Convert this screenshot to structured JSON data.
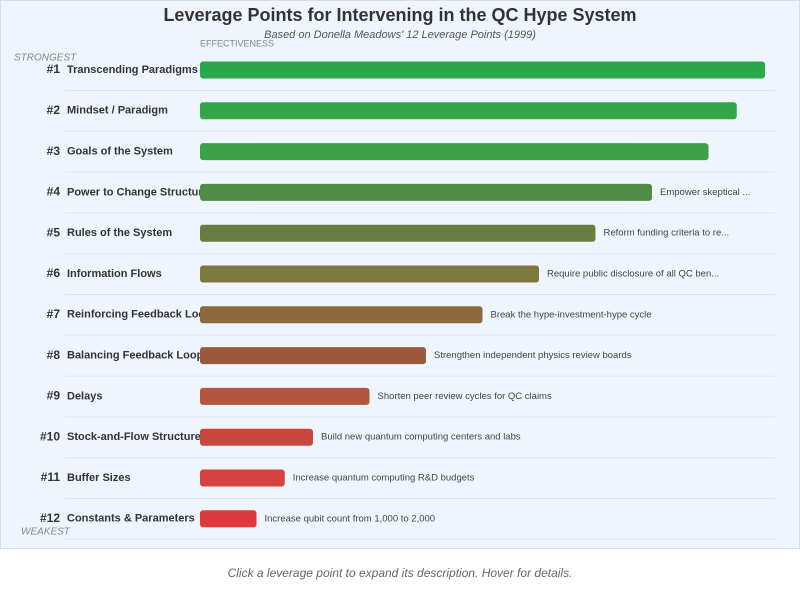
{
  "chart_data": {
    "type": "bar",
    "title": "Leverage Points for Intervening in the QC Hype System",
    "subtitle": "Based on Donella Meadows' 12 Leverage Points (1999)",
    "axis_label": "EFFECTIVENESS",
    "top_label": "STRONGEST",
    "bottom_label": "WEAKEST",
    "ranks": [
      "#1",
      "#2",
      "#3",
      "#4",
      "#5",
      "#6",
      "#7",
      "#8",
      "#9",
      "#10",
      "#11",
      "#12"
    ],
    "categories": [
      "Transcending Paradigms",
      "Mindset / Paradigm",
      "Goals of the System",
      "Power to Change Structure",
      "Rules of the System",
      "Information Flows",
      "Reinforcing Feedback Loops",
      "Balancing Feedback Loops",
      "Delays",
      "Stock-and-Flow Structures",
      "Buffer Sizes",
      "Constants & Parameters"
    ],
    "values": [
      100,
      95,
      90,
      80,
      70,
      60,
      50,
      40,
      30,
      20,
      15,
      10
    ],
    "descriptions": [
      null,
      null,
      null,
      "Empower skeptical ...",
      "Reform funding criteria to re...",
      "Require public disclosure of all QC ben...",
      "Break the hype-investment-hype cycle",
      "Strengthen independent physics review boards",
      "Shorten peer review cycles for QC claims",
      "Build new quantum computing centers and labs",
      "Increase quantum computing R&D budgets",
      "Increase qubit count from 1,000 to 2,000"
    ],
    "colors": [
      "#2ba84a",
      "#33a64a",
      "#3ba346",
      "#4f8c45",
      "#6a7d40",
      "#7c7a3e",
      "#8b6a3e",
      "#9c5a3c",
      "#b3553f",
      "#c9483e",
      "#d64240",
      "#dd3b3b"
    ],
    "xlim": [
      0,
      100
    ]
  },
  "footer": "Click a leverage point to expand its description. Hover for details."
}
